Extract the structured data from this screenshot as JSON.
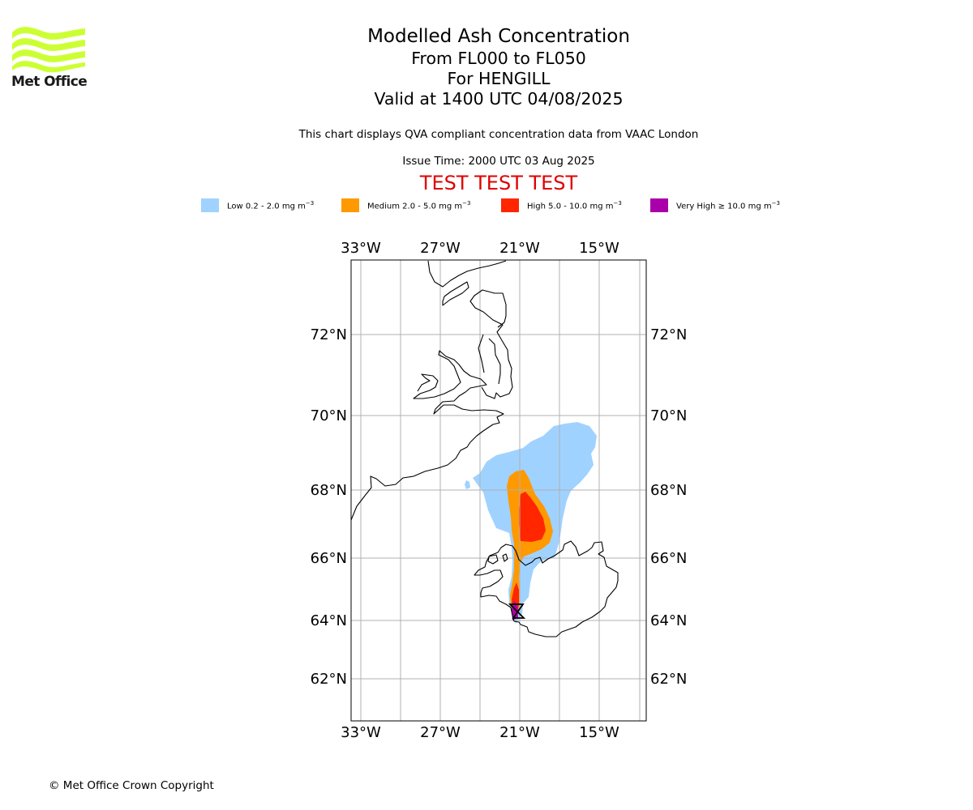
{
  "logo": {
    "text": "Met Office",
    "color": "#ccff33"
  },
  "header": {
    "title": "Modelled Ash Concentration",
    "levels": "From FL000 to FL050",
    "volcano": "For HENGILL",
    "valid": "Valid at 1400 UTC 04/08/2025",
    "compliance_note": "This chart displays QVA compliant concentration data from VAAC London",
    "issue_time": "Issue Time: 2000 UTC 03 Aug 2025",
    "test_banner": "TEST TEST TEST"
  },
  "legend": [
    {
      "label": "Low 0.2 - 2.0 mg m",
      "unit_exp": "−3",
      "color": "#a0d2ff"
    },
    {
      "label": "Medium 2.0 - 5.0 mg m",
      "unit_exp": "−3",
      "color": "#ff9900"
    },
    {
      "label": "High 5.0 - 10.0 mg m",
      "unit_exp": "−3",
      "color": "#ff2600"
    },
    {
      "label": "Very High  ≥  10.0 mg m",
      "unit_exp": "−3",
      "color": "#aa00aa"
    }
  ],
  "map": {
    "lon_ticks": [
      "33°W",
      "27°W",
      "21°W",
      "15°W"
    ],
    "lat_ticks": [
      "72°N",
      "70°N",
      "68°N",
      "66°N",
      "64°N",
      "62°N"
    ],
    "grid_color": "#b0b0b0",
    "coast_color": "#000000"
  },
  "footer": {
    "copyright": "© Met Office Crown Copyright"
  }
}
